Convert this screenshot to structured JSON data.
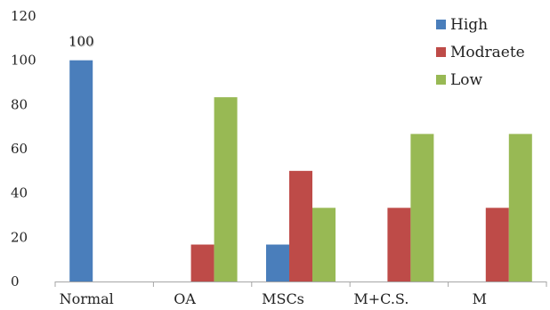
{
  "chart_data": {
    "type": "bar",
    "title": "",
    "xlabel": "",
    "ylabel": "",
    "ylim": [
      0,
      120
    ],
    "yticks": [
      0,
      20,
      40,
      60,
      80,
      100,
      120
    ],
    "grid": false,
    "legend_position": "top-right",
    "categories": [
      "Normal",
      "OA",
      "MSCs",
      "M+C.S.",
      "M"
    ],
    "series": [
      {
        "name": "High",
        "color": "#4a7ebb",
        "values": [
          100,
          0,
          16.7,
          0,
          0
        ]
      },
      {
        "name": "Modraete",
        "color": "#be4b48",
        "values": [
          0,
          16.7,
          50,
          33.3,
          33.3
        ]
      },
      {
        "name": "Low",
        "color": "#98b954",
        "values": [
          0,
          83.3,
          33.3,
          66.7,
          66.7
        ]
      }
    ],
    "annotations": [
      {
        "text": "100",
        "category": "Normal",
        "series": "High"
      }
    ]
  }
}
